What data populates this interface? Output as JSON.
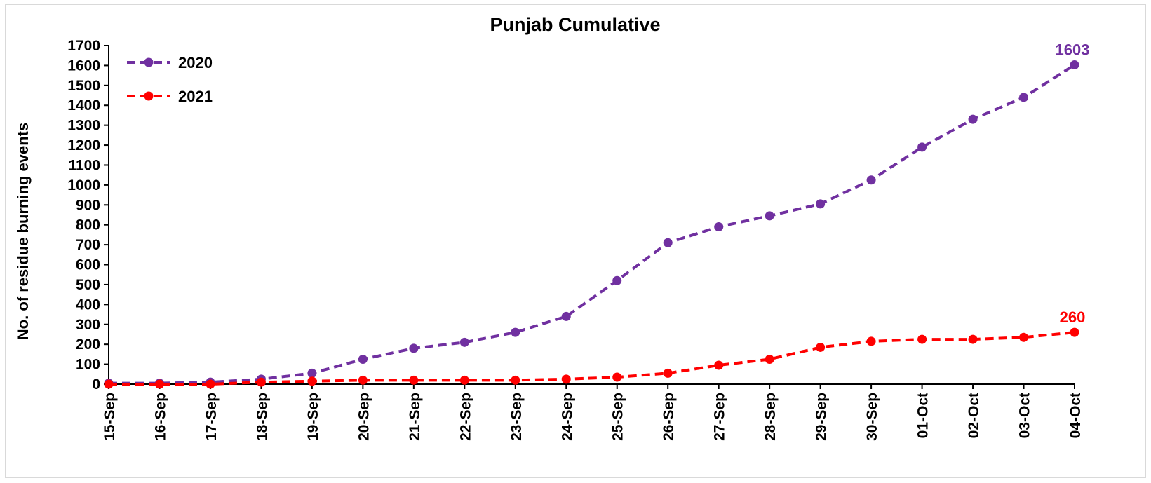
{
  "chart_data": {
    "type": "line",
    "title": "Punjab Cumulative",
    "xlabel": "",
    "ylabel": "No. of residue burning events",
    "categories": [
      "15-Sep",
      "16-Sep",
      "17-Sep",
      "18-Sep",
      "19-Sep",
      "20-Sep",
      "21-Sep",
      "22-Sep",
      "23-Sep",
      "24-Sep",
      "25-Sep",
      "26-Sep",
      "27-Sep",
      "28-Sep",
      "29-Sep",
      "30-Sep",
      "01-Oct",
      "02-Oct",
      "03-Oct",
      "04-Oct"
    ],
    "ylim": [
      0,
      1700
    ],
    "yticks": [
      0,
      100,
      200,
      300,
      400,
      500,
      600,
      700,
      800,
      900,
      1000,
      1100,
      1200,
      1300,
      1400,
      1500,
      1600,
      1700
    ],
    "grid": false,
    "legend_position": "top-left",
    "series": [
      {
        "name": "2020",
        "color": "#7030a0",
        "values": [
          5,
          5,
          10,
          25,
          55,
          125,
          180,
          210,
          260,
          340,
          520,
          710,
          790,
          845,
          905,
          1025,
          1190,
          1330,
          1440,
          1603
        ],
        "end_label": "1603"
      },
      {
        "name": "2021",
        "color": "#ff0000",
        "values": [
          0,
          0,
          0,
          10,
          15,
          20,
          20,
          20,
          20,
          25,
          35,
          55,
          95,
          125,
          185,
          215,
          225,
          225,
          235,
          260
        ],
        "end_label": "260"
      }
    ]
  }
}
